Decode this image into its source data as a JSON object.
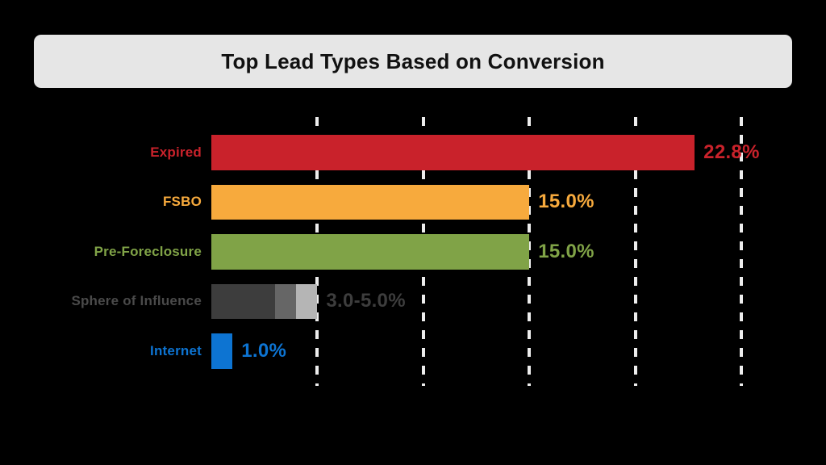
{
  "header": {
    "title": "Top Lead Types Based on Conversion",
    "background_color": "#e6e6e6",
    "title_color": "#111111"
  },
  "page_background_color": "#000000",
  "chart_data": {
    "type": "bar",
    "orientation": "horizontal",
    "title": "Top Lead Types Based on Conversion",
    "xlabel": "",
    "ylabel": "",
    "xlim_percent": [
      0,
      25
    ],
    "grid": "dashed-vertical",
    "gridline_percent_values": [
      5,
      10,
      15,
      20,
      25
    ],
    "gridline_color": "#ededed",
    "legend": "none",
    "categories": [
      "Expired",
      "FSBO",
      "Pre-Foreclosure",
      "Sphere of Influence",
      "Internet"
    ],
    "rows": [
      {
        "label": "Expired",
        "label_color": "#c9222b",
        "value_label": "22.8%",
        "value_color": "#c9222b",
        "total_percent": 22.8,
        "segments": [
          {
            "percent": 22.8,
            "color": "#c9222b"
          }
        ]
      },
      {
        "label": "FSBO",
        "label_color": "#f7aa3d",
        "value_label": "15.0%",
        "value_color": "#f7aa3d",
        "total_percent": 15.0,
        "segments": [
          {
            "percent": 15.0,
            "color": "#f7aa3d"
          }
        ]
      },
      {
        "label": "Pre-Foreclosure",
        "label_color": "#80a347",
        "value_label": "15.0%",
        "value_color": "#80a347",
        "total_percent": 15.0,
        "segments": [
          {
            "percent": 15.0,
            "color": "#80a347"
          }
        ]
      },
      {
        "label": "Sphere of Influence",
        "label_color": "#4a4a4a",
        "value_label": "3.0-5.0%",
        "value_color": "#3d3d3d",
        "total_percent": 5.0,
        "segments": [
          {
            "percent": 3.0,
            "color": "#3d3d3d"
          },
          {
            "percent": 1.0,
            "color": "#666666"
          },
          {
            "percent": 1.0,
            "color": "#b5b5b5"
          }
        ]
      },
      {
        "label": "Internet",
        "label_color": "#0d74d2",
        "value_label": "1.0%",
        "value_color": "#0d74d2",
        "total_percent": 1.0,
        "segments": [
          {
            "percent": 1.0,
            "color": "#0d74d2"
          }
        ]
      }
    ]
  }
}
